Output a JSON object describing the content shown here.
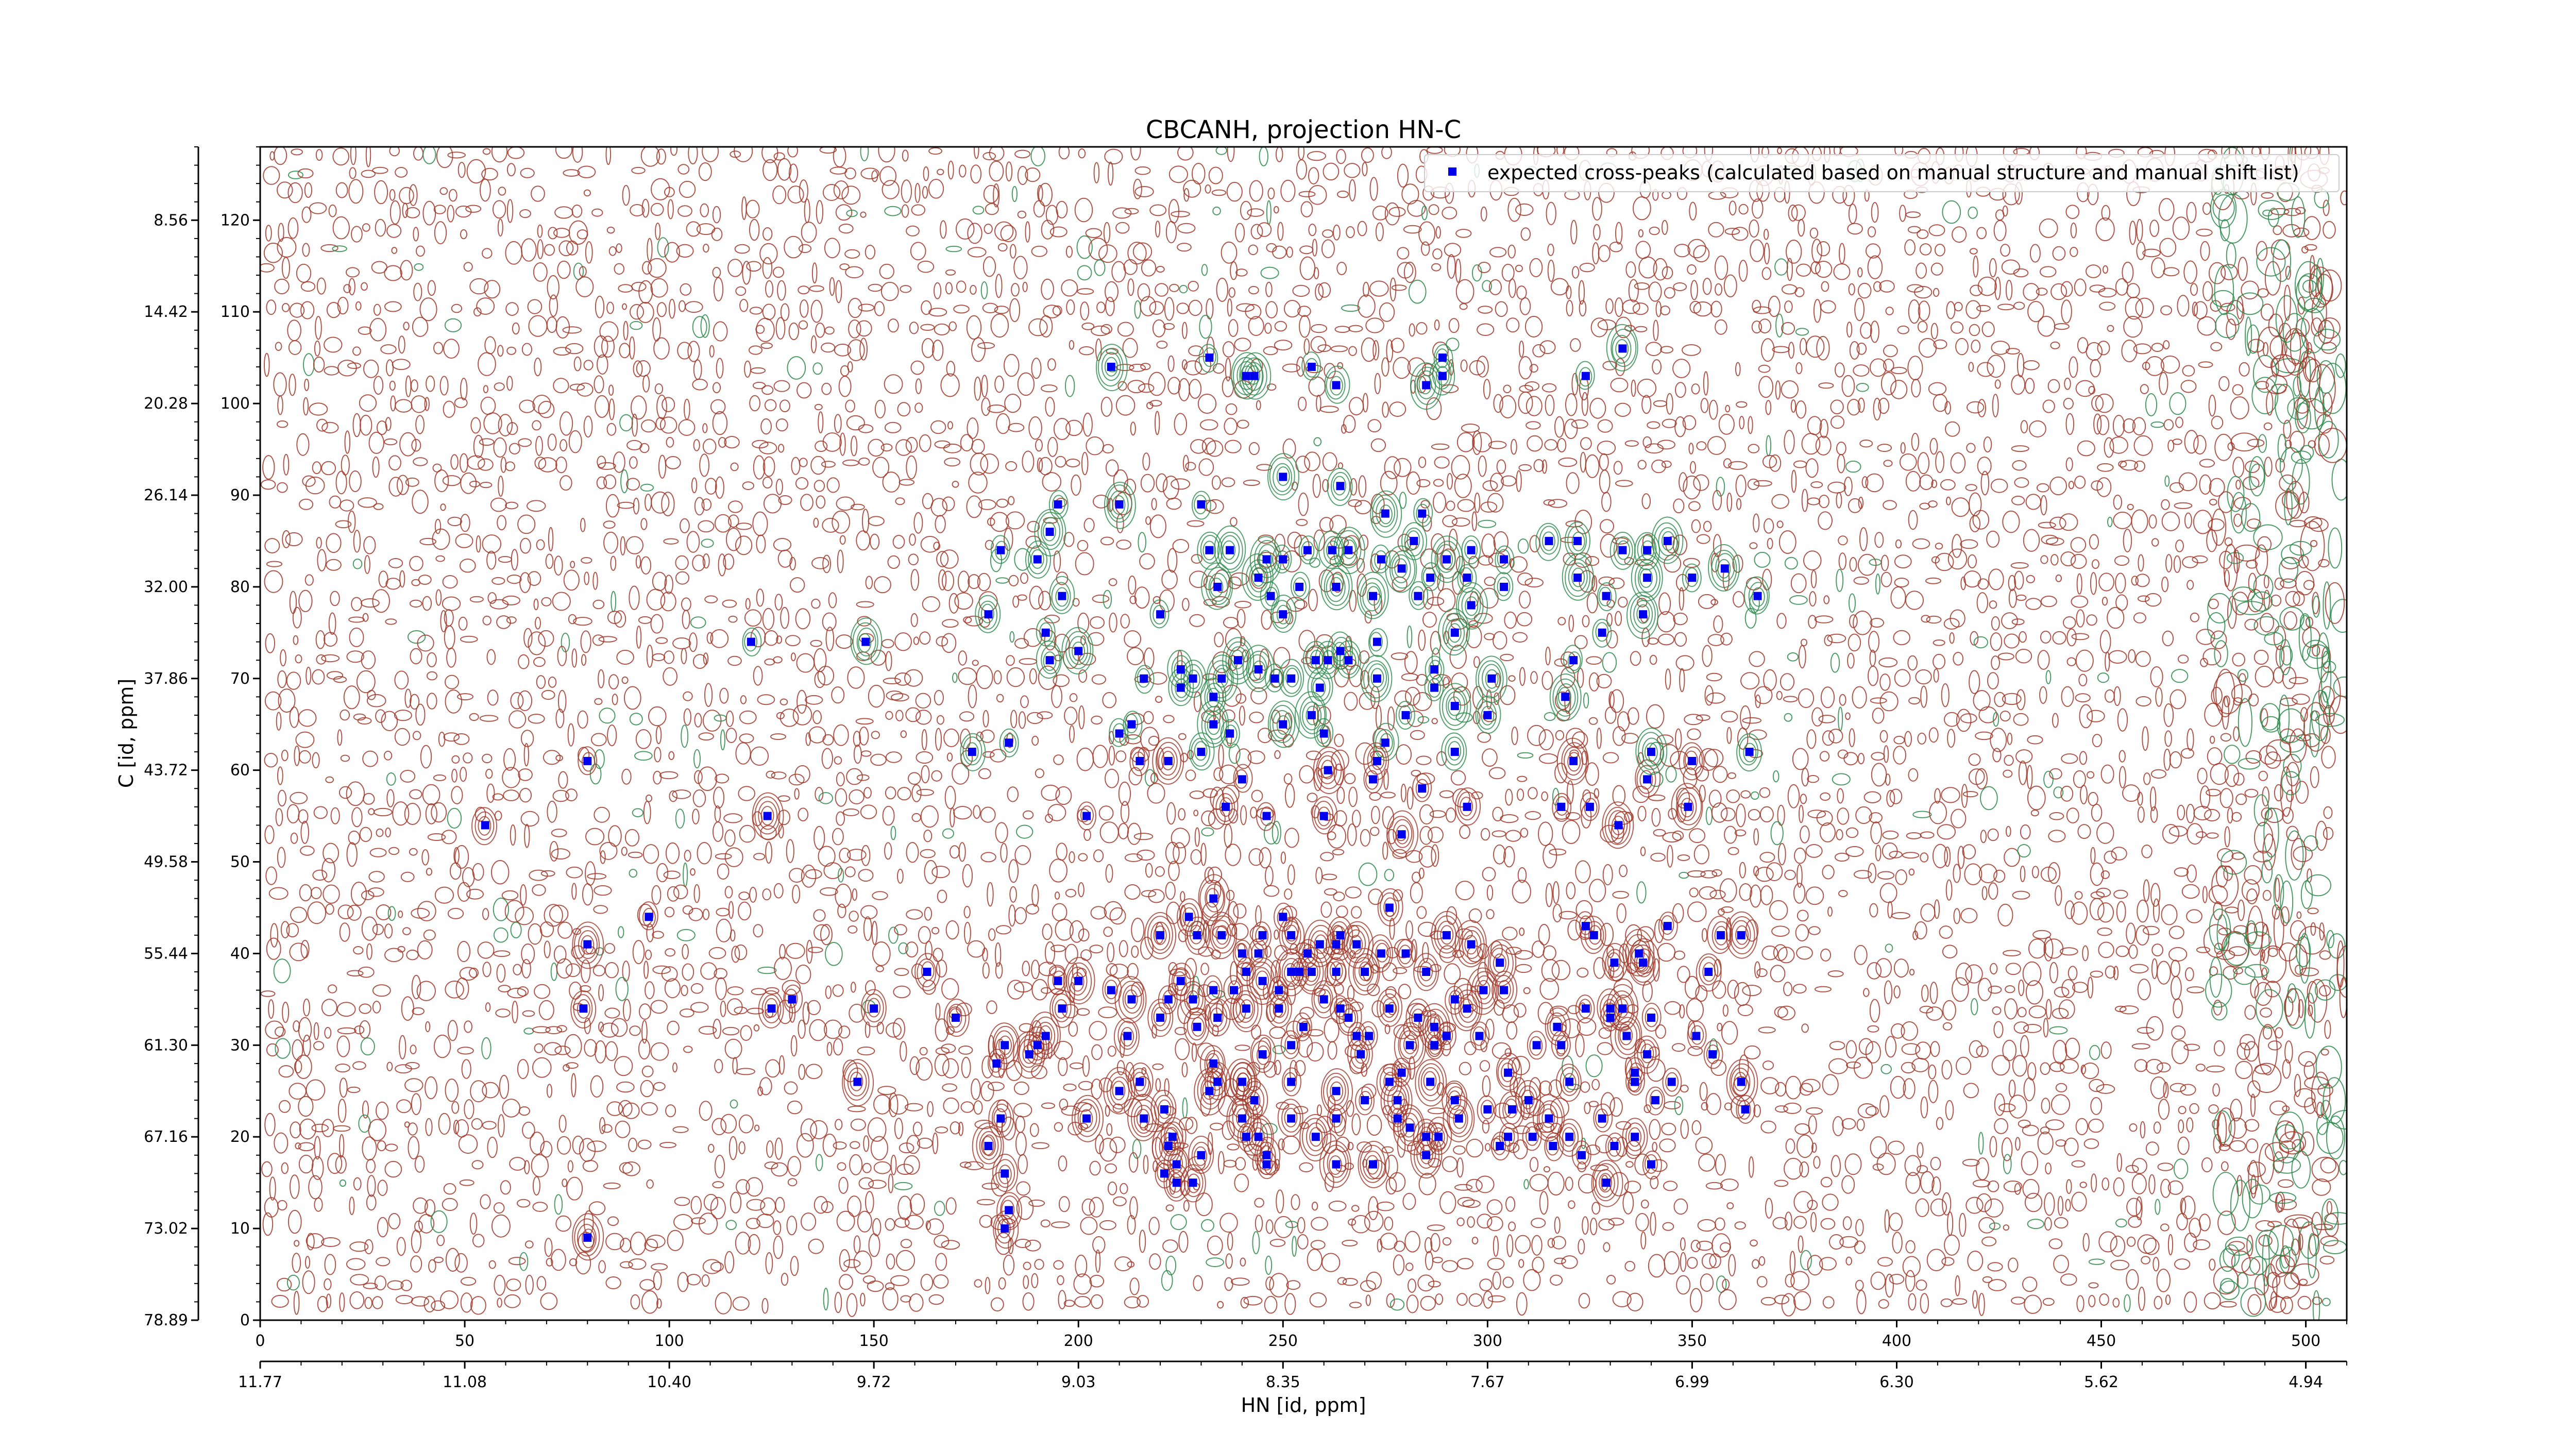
{
  "chart_data": {
    "type": "scatter",
    "title": "CBCANH, projection HN-C",
    "xlabel": "HN [id, ppm]",
    "ylabel": "C [id, ppm]",
    "xlim": [
      0,
      510
    ],
    "ylim": [
      0,
      128
    ],
    "x_ticks": [
      0,
      50,
      100,
      150,
      200,
      250,
      300,
      350,
      400,
      450,
      500
    ],
    "y_ticks": [
      0,
      10,
      20,
      30,
      40,
      50,
      60,
      70,
      80,
      90,
      100,
      110,
      120
    ],
    "secondary_x_ticks": [
      "11.77",
      "11.08",
      "10.40",
      "9.72",
      "9.03",
      "8.35",
      "7.67",
      "6.99",
      "6.30",
      "5.62",
      "4.94"
    ],
    "secondary_y_ticks": [
      "78.89",
      "73.02",
      "67.16",
      "61.30",
      "55.44",
      "49.58",
      "43.72",
      "37.86",
      "32.00",
      "26.14",
      "20.28",
      "14.42",
      "8.56"
    ],
    "legend": {
      "position": "top-right",
      "marker_color": "#0000ee",
      "label": "expected cross-peaks (calculated based on manual structure and manual shift list)"
    },
    "contour_colors": {
      "positive": "#a0392a",
      "negative": "#2e8b4e"
    },
    "series": [
      {
        "name": "expected cross-peaks (calculated based on manual structure and manual shift list)",
        "points": [
          [
            208,
            104
          ],
          [
            232,
            105
          ],
          [
            243,
            103
          ],
          [
            241,
            103
          ],
          [
            257,
            104
          ],
          [
            263,
            102
          ],
          [
            285,
            102
          ],
          [
            289,
            105
          ],
          [
            324,
            103
          ],
          [
            333,
            106
          ],
          [
            289,
            103
          ],
          [
            250,
            92
          ],
          [
            264,
            91
          ],
          [
            275,
            88
          ],
          [
            284,
            88
          ],
          [
            230,
            89
          ],
          [
            195,
            89
          ],
          [
            193,
            86
          ],
          [
            181,
            84
          ],
          [
            190,
            83
          ],
          [
            210,
            89
          ],
          [
            232,
            84
          ],
          [
            237,
            84
          ],
          [
            246,
            83
          ],
          [
            250,
            83
          ],
          [
            256,
            84
          ],
          [
            262,
            84
          ],
          [
            266,
            84
          ],
          [
            274,
            83
          ],
          [
            282,
            85
          ],
          [
            290,
            83
          ],
          [
            296,
            84
          ],
          [
            304,
            83
          ],
          [
            315,
            85
          ],
          [
            322,
            85
          ],
          [
            333,
            84
          ],
          [
            339,
            84
          ],
          [
            344,
            85
          ],
          [
            244,
            81
          ],
          [
            247,
            79
          ],
          [
            254,
            80
          ],
          [
            263,
            80
          ],
          [
            279,
            82
          ],
          [
            286,
            81
          ],
          [
            295,
            81
          ],
          [
            304,
            80
          ],
          [
            322,
            81
          ],
          [
            329,
            79
          ],
          [
            339,
            81
          ],
          [
            350,
            81
          ],
          [
            358,
            82
          ],
          [
            366,
            79
          ],
          [
            234,
            80
          ],
          [
            196,
            79
          ],
          [
            220,
            77
          ],
          [
            250,
            77
          ],
          [
            292,
            75
          ],
          [
            328,
            75
          ],
          [
            338,
            77
          ],
          [
            178,
            77
          ],
          [
            192,
            75
          ],
          [
            273,
            74
          ],
          [
            264,
            73
          ],
          [
            252,
            70
          ],
          [
            244,
            71
          ],
          [
            235,
            70
          ],
          [
            239,
            72
          ],
          [
            225,
            71
          ],
          [
            225,
            69
          ],
          [
            233,
            68
          ],
          [
            237,
            64
          ],
          [
            248,
            70
          ],
          [
            258,
            72
          ],
          [
            261,
            72
          ],
          [
            259,
            69
          ],
          [
            266,
            72
          ],
          [
            273,
            70
          ],
          [
            287,
            71
          ],
          [
            292,
            67
          ],
          [
            301,
            70
          ],
          [
            300,
            66
          ],
          [
            280,
            66
          ],
          [
            287,
            69
          ],
          [
            250,
            65
          ],
          [
            257,
            66
          ],
          [
            260,
            64
          ],
          [
            275,
            63
          ],
          [
            321,
            72
          ],
          [
            319,
            68
          ],
          [
            292,
            62
          ],
          [
            273,
            61
          ],
          [
            183,
            63
          ],
          [
            174,
            62
          ],
          [
            210,
            64
          ],
          [
            213,
            65
          ],
          [
            193,
            72
          ],
          [
            200,
            73
          ],
          [
            148,
            74
          ],
          [
            120,
            74
          ],
          [
            80,
            61
          ],
          [
            216,
            70
          ],
          [
            228,
            70
          ],
          [
            222,
            61
          ],
          [
            233,
            65
          ],
          [
            230,
            62
          ],
          [
            272,
            79
          ],
          [
            283,
            79
          ],
          [
            296,
            78
          ],
          [
            240,
            59
          ],
          [
            236,
            56
          ],
          [
            246,
            55
          ],
          [
            260,
            55
          ],
          [
            261,
            60
          ],
          [
            272,
            59
          ],
          [
            284,
            58
          ],
          [
            295,
            56
          ],
          [
            332,
            54
          ],
          [
            339,
            59
          ],
          [
            325,
            56
          ],
          [
            318,
            56
          ],
          [
            349,
            56
          ],
          [
            364,
            62
          ],
          [
            350,
            61
          ],
          [
            340,
            62
          ],
          [
            321,
            61
          ],
          [
            279,
            53
          ],
          [
            215,
            61
          ],
          [
            124,
            55
          ],
          [
            55,
            54
          ],
          [
            202,
            55
          ],
          [
            220,
            42
          ],
          [
            227,
            44
          ],
          [
            235,
            42
          ],
          [
            240,
            40
          ],
          [
            244,
            40
          ],
          [
            250,
            44
          ],
          [
            252,
            42
          ],
          [
            256,
            40
          ],
          [
            259,
            41
          ],
          [
            263,
            41
          ],
          [
            268,
            41
          ],
          [
            263,
            38
          ],
          [
            274,
            40
          ],
          [
            280,
            40
          ],
          [
            285,
            38
          ],
          [
            290,
            42
          ],
          [
            296,
            41
          ],
          [
            303,
            39
          ],
          [
            326,
            42
          ],
          [
            331,
            39
          ],
          [
            338,
            39
          ],
          [
            344,
            43
          ],
          [
            357,
            42
          ],
          [
            362,
            42
          ],
          [
            354,
            38
          ],
          [
            330,
            34
          ],
          [
            333,
            34
          ],
          [
            340,
            33
          ],
          [
            324,
            34
          ],
          [
            318,
            30
          ],
          [
            317,
            32
          ],
          [
            304,
            36
          ],
          [
            299,
            36
          ],
          [
            292,
            35
          ],
          [
            290,
            31
          ],
          [
            287,
            30
          ],
          [
            283,
            33
          ],
          [
            276,
            34
          ],
          [
            271,
            31
          ],
          [
            264,
            34
          ],
          [
            266,
            33
          ],
          [
            260,
            35
          ],
          [
            257,
            38
          ],
          [
            255,
            32
          ],
          [
            249,
            36
          ],
          [
            245,
            37
          ],
          [
            241,
            34
          ],
          [
            238,
            36
          ],
          [
            233,
            36
          ],
          [
            228,
            35
          ],
          [
            229,
            32
          ],
          [
            222,
            35
          ],
          [
            220,
            33
          ],
          [
            213,
            35
          ],
          [
            208,
            36
          ],
          [
            200,
            37
          ],
          [
            195,
            37
          ],
          [
            196,
            34
          ],
          [
            192,
            31
          ],
          [
            190,
            30
          ],
          [
            182,
            30
          ],
          [
            170,
            33
          ],
          [
            163,
            38
          ],
          [
            150,
            34
          ],
          [
            130,
            35
          ],
          [
            125,
            34
          ],
          [
            80,
            41
          ],
          [
            79,
            34
          ],
          [
            95,
            44
          ],
          [
            180,
            28
          ],
          [
            188,
            29
          ],
          [
            252,
            30
          ],
          [
            245,
            29
          ],
          [
            234,
            26
          ],
          [
            233,
            28
          ],
          [
            240,
            26
          ],
          [
            243,
            24
          ],
          [
            252,
            26
          ],
          [
            252,
            22
          ],
          [
            263,
            22
          ],
          [
            263,
            25
          ],
          [
            270,
            24
          ],
          [
            278,
            24
          ],
          [
            276,
            26
          ],
          [
            279,
            27
          ],
          [
            286,
            26
          ],
          [
            292,
            24
          ],
          [
            293,
            22
          ],
          [
            306,
            23
          ],
          [
            315,
            22
          ],
          [
            320,
            26
          ],
          [
            328,
            22
          ],
          [
            341,
            24
          ],
          [
            336,
            27
          ],
          [
            336,
            26
          ],
          [
            345,
            26
          ],
          [
            351,
            31
          ],
          [
            355,
            29
          ],
          [
            362,
            26
          ],
          [
            363,
            23
          ],
          [
            331,
            19
          ],
          [
            336,
            20
          ],
          [
            316,
            19
          ],
          [
            285,
            18
          ],
          [
            278,
            22
          ],
          [
            263,
            17
          ],
          [
            224,
            17
          ],
          [
            230,
            18
          ],
          [
            215,
            26
          ],
          [
            216,
            22
          ],
          [
            210,
            25
          ],
          [
            181,
            22
          ],
          [
            202,
            22
          ],
          [
            222,
            19
          ],
          [
            272,
            17
          ],
          [
            234,
            33
          ],
          [
            225,
            37
          ],
          [
            269,
            29
          ],
          [
            249,
            34
          ],
          [
            229,
            42
          ],
          [
            232,
            25
          ],
          [
            240,
            26
          ],
          [
            240,
            22
          ],
          [
            241,
            20
          ],
          [
            246,
            18
          ],
          [
            182,
            16
          ],
          [
            221,
            23
          ],
          [
            254,
            38
          ],
          [
            264,
            42
          ],
          [
            212,
            31
          ],
          [
            320,
            20
          ],
          [
            323,
            18
          ],
          [
            311,
            20
          ],
          [
            303,
            19
          ],
          [
            288,
            20
          ],
          [
            281,
            21
          ],
          [
            221,
            16
          ],
          [
            268,
            31
          ],
          [
            298,
            31
          ],
          [
            339,
            29
          ],
          [
            334,
            31
          ],
          [
            330,
            33
          ],
          [
            324,
            43
          ],
          [
            337,
            40
          ],
          [
            245,
            42
          ],
          [
            246,
            17
          ],
          [
            258,
            20
          ],
          [
            228,
            15
          ],
          [
            244,
            20
          ],
          [
            295,
            34
          ],
          [
            305,
            27
          ],
          [
            276,
            45
          ],
          [
            270,
            38
          ],
          [
            300,
            23
          ],
          [
            183,
            12
          ],
          [
            80,
            9
          ],
          [
            182,
            10
          ],
          [
            146,
            26
          ],
          [
            178,
            19
          ],
          [
            312,
            30
          ],
          [
            281,
            30
          ],
          [
            241,
            38
          ],
          [
            252,
            38
          ],
          [
            233,
            46
          ],
          [
            285,
            20
          ],
          [
            287,
            32
          ],
          [
            310,
            24
          ],
          [
            223,
            20
          ],
          [
            224,
            15
          ],
          [
            329,
            15
          ],
          [
            340,
            17
          ],
          [
            305,
            20
          ]
        ]
      }
    ]
  }
}
